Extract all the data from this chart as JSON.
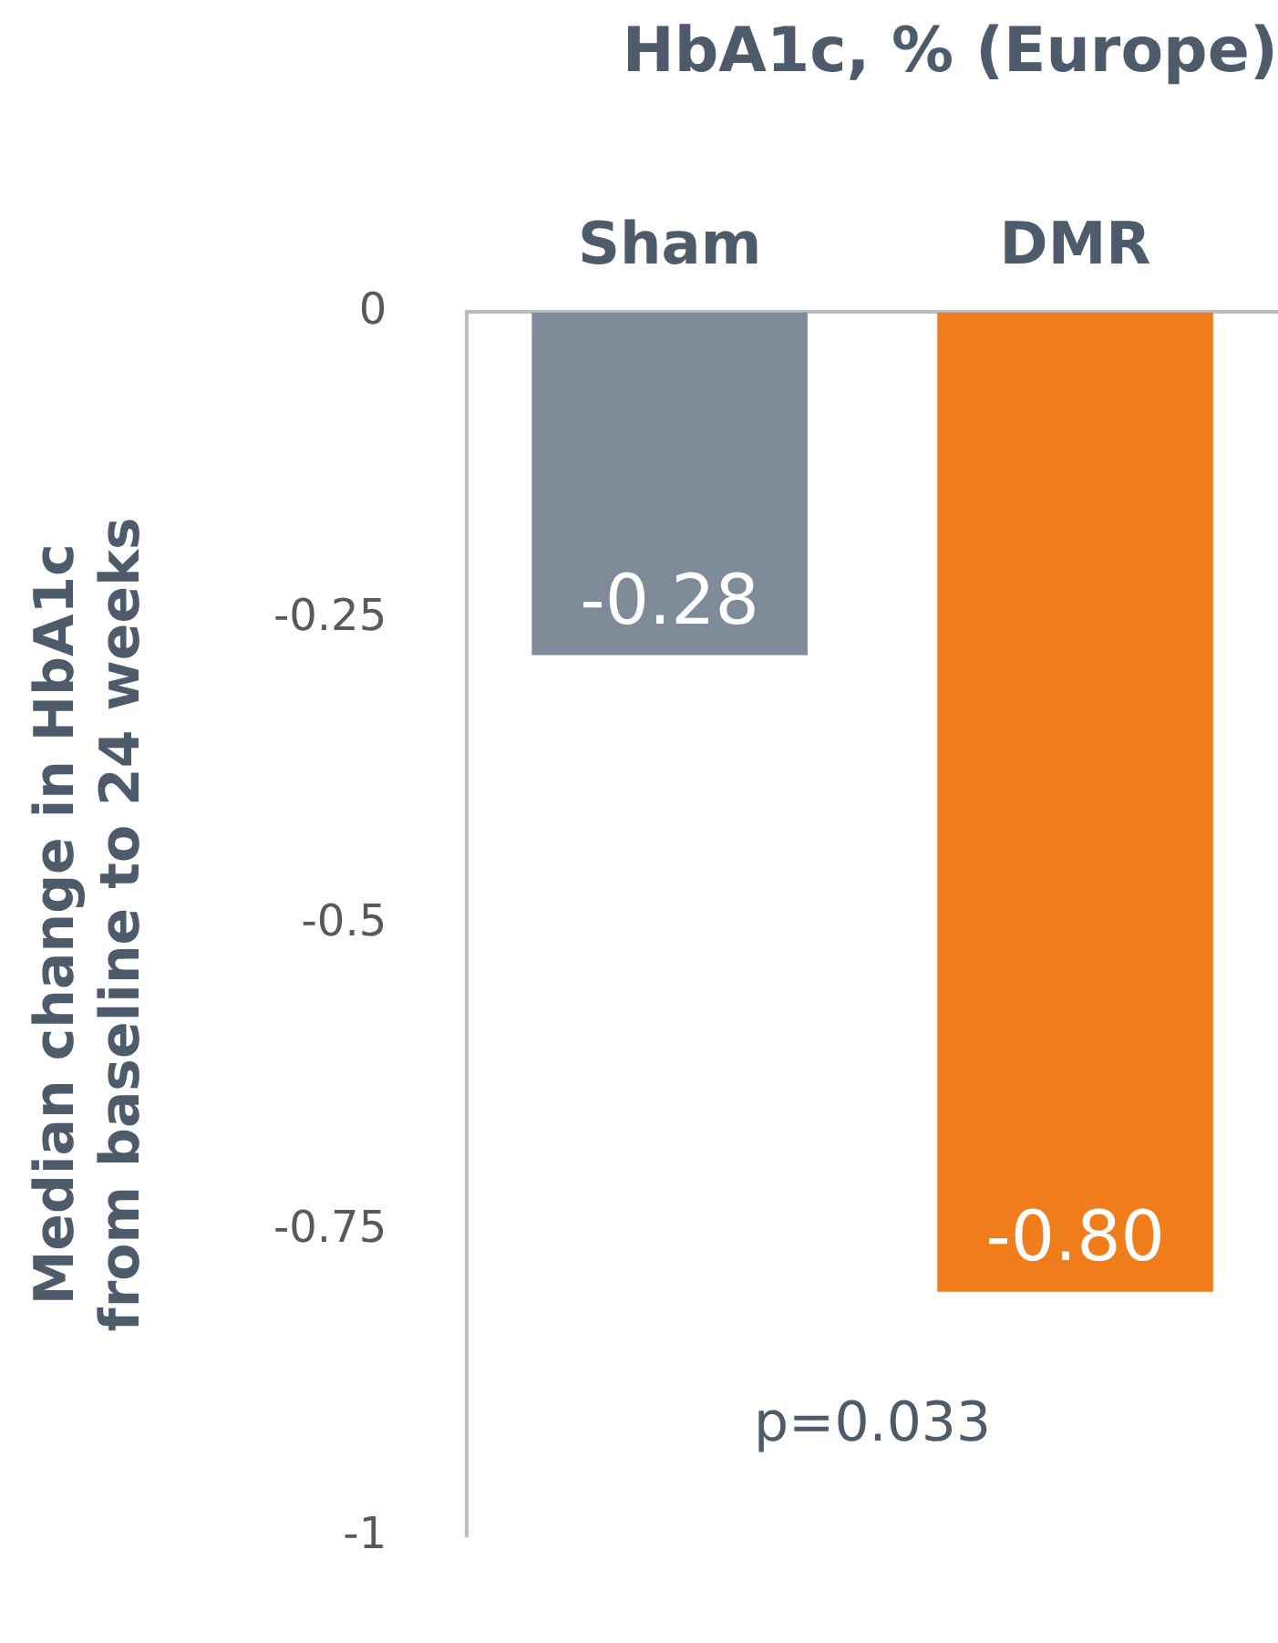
{
  "chart_data": {
    "type": "bar",
    "title": "HbA1c, % (Europe)",
    "ylabel": "Median change in HbA1c from baseline to 24 weeks",
    "categories": [
      "Sham",
      "DMR"
    ],
    "values": [
      -0.28,
      -0.8
    ],
    "colors": [
      "#7f8b98",
      "#ef7d1c"
    ],
    "value_labels": [
      "-0.28",
      "-0.80"
    ],
    "ylim": [
      -1,
      0
    ],
    "yticks": [
      0,
      -0.25,
      -0.5,
      -0.75,
      -1
    ],
    "annotations": [
      "p=0.033"
    ],
    "grid": false,
    "legend": false
  }
}
